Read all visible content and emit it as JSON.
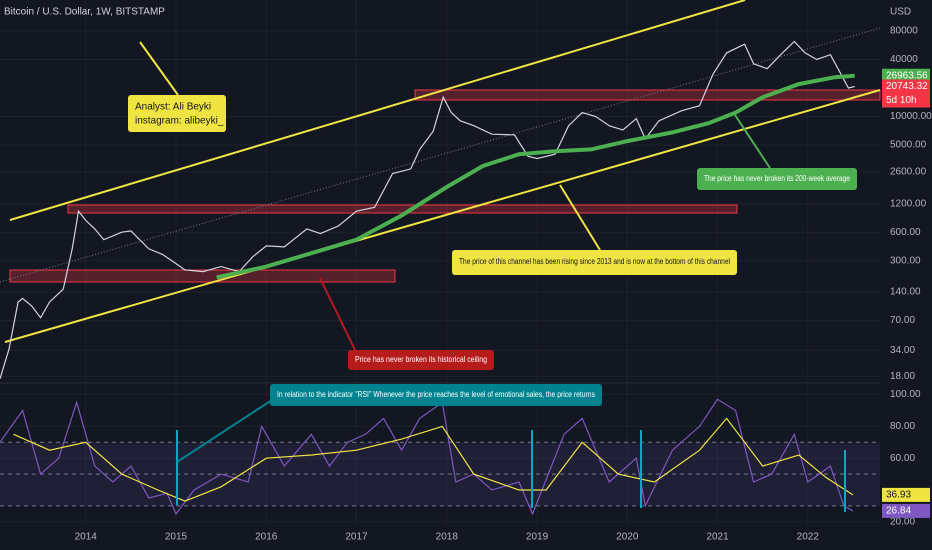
{
  "chart_data": [
    {
      "type": "line",
      "title": "Bitcoin / U.S. Dollar, 1W, BITSTAMP",
      "y_unit": "USD",
      "log_scale": true,
      "grid": true,
      "xlim": [
        2013.05,
        2022.8
      ],
      "ylim": [
        16.5,
        170000
      ],
      "yticks": [
        80000,
        40000,
        {
          "value": 10000,
          "label": "10000.00"
        },
        {
          "value": 5000,
          "label": "5000.00"
        },
        {
          "value": 2600,
          "label": "2600.00"
        },
        {
          "value": 1200,
          "label": "1200.00"
        },
        {
          "value": 600,
          "label": "600.00"
        },
        {
          "value": 300,
          "label": "300.00"
        },
        {
          "value": 140,
          "label": "140.00"
        },
        {
          "value": 70,
          "label": "70.00"
        },
        {
          "value": 34,
          "label": "34.00"
        },
        {
          "value": 18,
          "label": "18.00"
        }
      ],
      "series": [
        {
          "color": "#d1d4dc",
          "x": [
            2013.05,
            2013.15,
            2013.25,
            2013.3,
            2013.4,
            2013.5,
            2013.6,
            2013.75,
            2013.85,
            2013.92,
            2014.0,
            2014.1,
            2014.2,
            2014.4,
            2014.5,
            2014.7,
            2014.85,
            2015.0,
            2015.1,
            2015.3,
            2015.5,
            2015.7,
            2015.85,
            2016.0,
            2016.2,
            2016.45,
            2016.6,
            2016.8,
            2017.0,
            2017.2,
            2017.4,
            2017.6,
            2017.7,
            2017.85,
            2017.96,
            2018.05,
            2018.15,
            2018.3,
            2018.5,
            2018.75,
            2018.9,
            2019.0,
            2019.2,
            2019.35,
            2019.5,
            2019.65,
            2019.8,
            2019.95,
            2020.1,
            2020.2,
            2020.35,
            2020.6,
            2020.8,
            2020.95,
            2021.1,
            2021.3,
            2021.4,
            2021.55,
            2021.7,
            2021.85,
            2021.97,
            2022.1,
            2022.25,
            2022.35,
            2022.45,
            2022.52
          ],
          "values": [
            17,
            35,
            110,
            120,
            100,
            75,
            110,
            150,
            400,
            1000,
            800,
            650,
            500,
            600,
            620,
            400,
            350,
            280,
            240,
            230,
            260,
            230,
            330,
            430,
            420,
            650,
            580,
            700,
            1000,
            1100,
            2500,
            2800,
            4500,
            7000,
            16000,
            11000,
            9000,
            8000,
            6500,
            6400,
            3800,
            3600,
            4000,
            8000,
            11000,
            10000,
            8000,
            7200,
            9500,
            5800,
            9000,
            11500,
            13000,
            28000,
            47000,
            58000,
            36000,
            32000,
            45000,
            62000,
            47000,
            40000,
            45000,
            30000,
            20000,
            20743.32
          ]
        },
        {
          "color": "#4caf50",
          "x": [
            2015.45,
            2016.0,
            2016.5,
            2017.0,
            2017.5,
            2018.0,
            2018.4,
            2018.8,
            2019.2,
            2019.6,
            2020.0,
            2020.5,
            2020.9,
            2021.2,
            2021.5,
            2021.9,
            2022.3,
            2022.52
          ],
          "values": [
            200,
            260,
            360,
            500,
            900,
            1800,
            3000,
            4000,
            4300,
            4500,
            5500,
            6800,
            8500,
            11000,
            16000,
            22000,
            26000,
            26963.56
          ]
        }
      ],
      "countdown": "5d 10h",
      "annotations": [
        "Analyst: Ali Beyki",
        "instagram: alibeyki_",
        "The price has never broken its 200-week average",
        "The price of this channel has been rising since 2013 and is now at the bottom of this channel",
        "Price has never broken its historical ceiling"
      ]
    },
    {
      "type": "line",
      "grid": true,
      "xlim": [
        2013.05,
        2022.8
      ],
      "ylim": [
        18,
        106
      ],
      "xticks": [
        2014,
        2015,
        2016,
        2017,
        2018,
        2019,
        2020,
        2021,
        2022
      ],
      "yticks": [
        {
          "value": 100,
          "label": "100.00"
        },
        {
          "value": 80,
          "label": "80.00"
        },
        {
          "value": 60,
          "label": "60.00"
        },
        {
          "value": 20,
          "label": "20.00"
        }
      ],
      "series": [
        {
          "color": "#7e57c2",
          "x": [
            2013.05,
            2013.3,
            2013.5,
            2013.7,
            2013.9,
            2014.1,
            2014.3,
            2014.5,
            2014.7,
            2014.9,
            2015.0,
            2015.2,
            2015.5,
            2015.8,
            2015.95,
            2016.2,
            2016.5,
            2016.7,
            2016.9,
            2017.1,
            2017.3,
            2017.5,
            2017.7,
            2017.95,
            2018.1,
            2018.3,
            2018.5,
            2018.8,
            2018.95,
            2019.3,
            2019.5,
            2019.8,
            2020.1,
            2020.2,
            2020.5,
            2020.8,
            2021.0,
            2021.2,
            2021.4,
            2021.6,
            2021.85,
            2022.0,
            2022.25,
            2022.4,
            2022.5
          ],
          "values": [
            70,
            90,
            50,
            60,
            95,
            55,
            45,
            55,
            35,
            38,
            25,
            40,
            50,
            45,
            80,
            55,
            75,
            55,
            70,
            75,
            85,
            65,
            85,
            95,
            45,
            50,
            40,
            45,
            25,
            75,
            85,
            45,
            60,
            30,
            65,
            80,
            97,
            90,
            45,
            50,
            75,
            45,
            55,
            30,
            26.84
          ]
        },
        {
          "color": "#f0e442",
          "x": [
            2013.2,
            2013.6,
            2014.0,
            2014.4,
            2014.8,
            2015.1,
            2015.5,
            2016.0,
            2016.5,
            2017.0,
            2017.5,
            2017.95,
            2018.3,
            2018.8,
            2019.1,
            2019.5,
            2019.9,
            2020.3,
            2020.8,
            2021.1,
            2021.5,
            2021.9,
            2022.2,
            2022.5
          ],
          "values": [
            75,
            65,
            70,
            50,
            40,
            33,
            42,
            60,
            62,
            65,
            72,
            80,
            50,
            40,
            40,
            70,
            50,
            45,
            65,
            85,
            55,
            62,
            48,
            36.93
          ]
        }
      ],
      "annotations": [
        "In relation to the indicator \"RSI\" Whenever the price reaches the level of emotional sales, the price returns"
      ]
    }
  ]
}
